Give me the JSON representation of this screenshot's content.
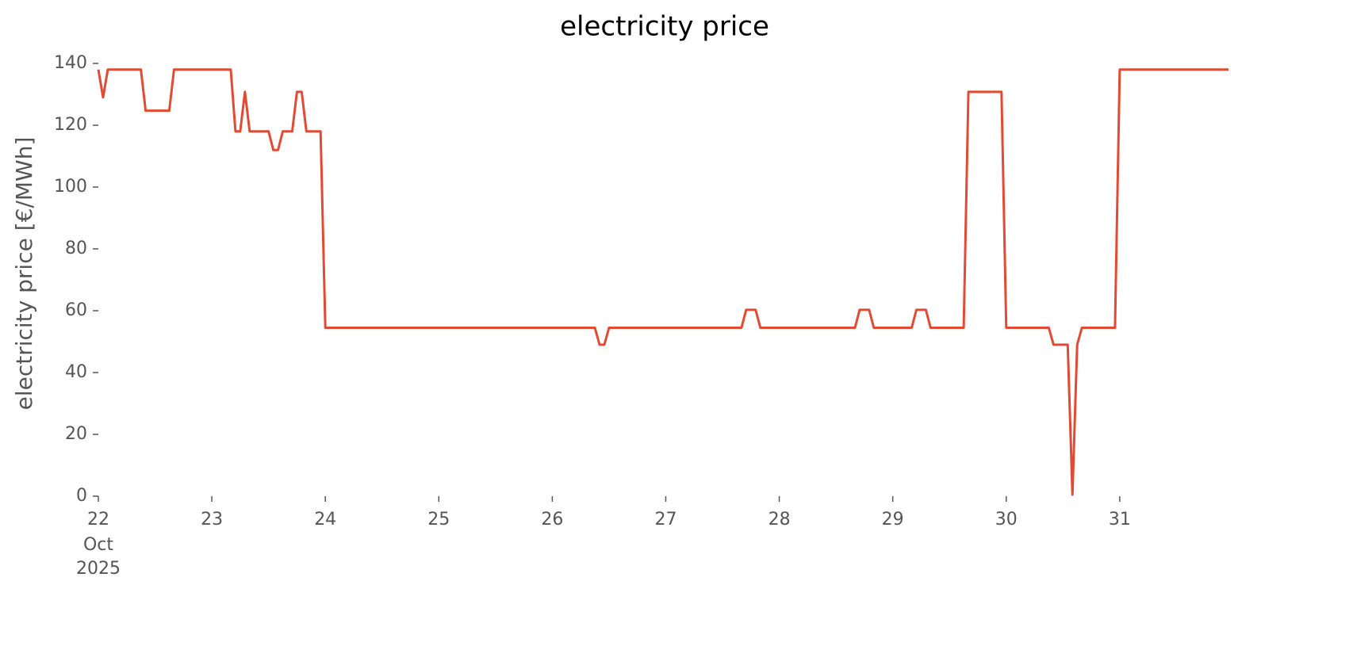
{
  "chart_data": {
    "type": "line",
    "title": "electricity price",
    "ylabel": "electricity price [€/MWh]",
    "month": "Oct",
    "year": "2025",
    "x": [
      22,
      22.0417,
      22.0833,
      22.375,
      22.4167,
      22.625,
      22.6667,
      23.1667,
      23.2083,
      23.25,
      23.2917,
      23.3333,
      23.5,
      23.5417,
      23.5833,
      23.625,
      23.7083,
      23.75,
      23.7917,
      23.8333,
      23.9583,
      24,
      26.375,
      26.4167,
      26.4583,
      26.5,
      27.6667,
      27.7083,
      27.7917,
      27.8333,
      28.6667,
      28.7083,
      28.7917,
      28.8333,
      29.1667,
      29.2083,
      29.2917,
      29.3333,
      29.625,
      29.6667,
      29.9583,
      30,
      30.375,
      30.4167,
      30.5417,
      30.5833,
      30.625,
      30.6667,
      30.9583,
      31,
      31.9583
    ],
    "series": [
      {
        "name": "electricity price",
        "color": "#e24a33",
        "values": [
          138,
          129,
          138,
          138,
          124.7,
          124.7,
          138,
          138,
          118,
          118,
          130.8,
          118,
          118,
          112,
          112,
          118,
          118,
          130.8,
          130.8,
          118,
          118,
          54.5,
          54.5,
          49,
          49,
          54.5,
          54.5,
          60.3,
          60.3,
          54.5,
          54.5,
          60.3,
          60.3,
          54.5,
          54.5,
          60.3,
          60.3,
          54.5,
          54.5,
          130.8,
          130.8,
          54.5,
          54.5,
          49,
          49,
          0.5,
          49,
          54.5,
          54.5,
          138,
          138
        ]
      }
    ],
    "xlim": [
      22,
      31.9583
    ],
    "xticks": [
      22,
      23,
      24,
      25,
      26,
      27,
      28,
      29,
      30,
      31
    ],
    "ylim": [
      0,
      140
    ],
    "yticks": [
      0,
      20,
      40,
      60,
      80,
      100,
      120,
      140
    ],
    "grid": false
  }
}
